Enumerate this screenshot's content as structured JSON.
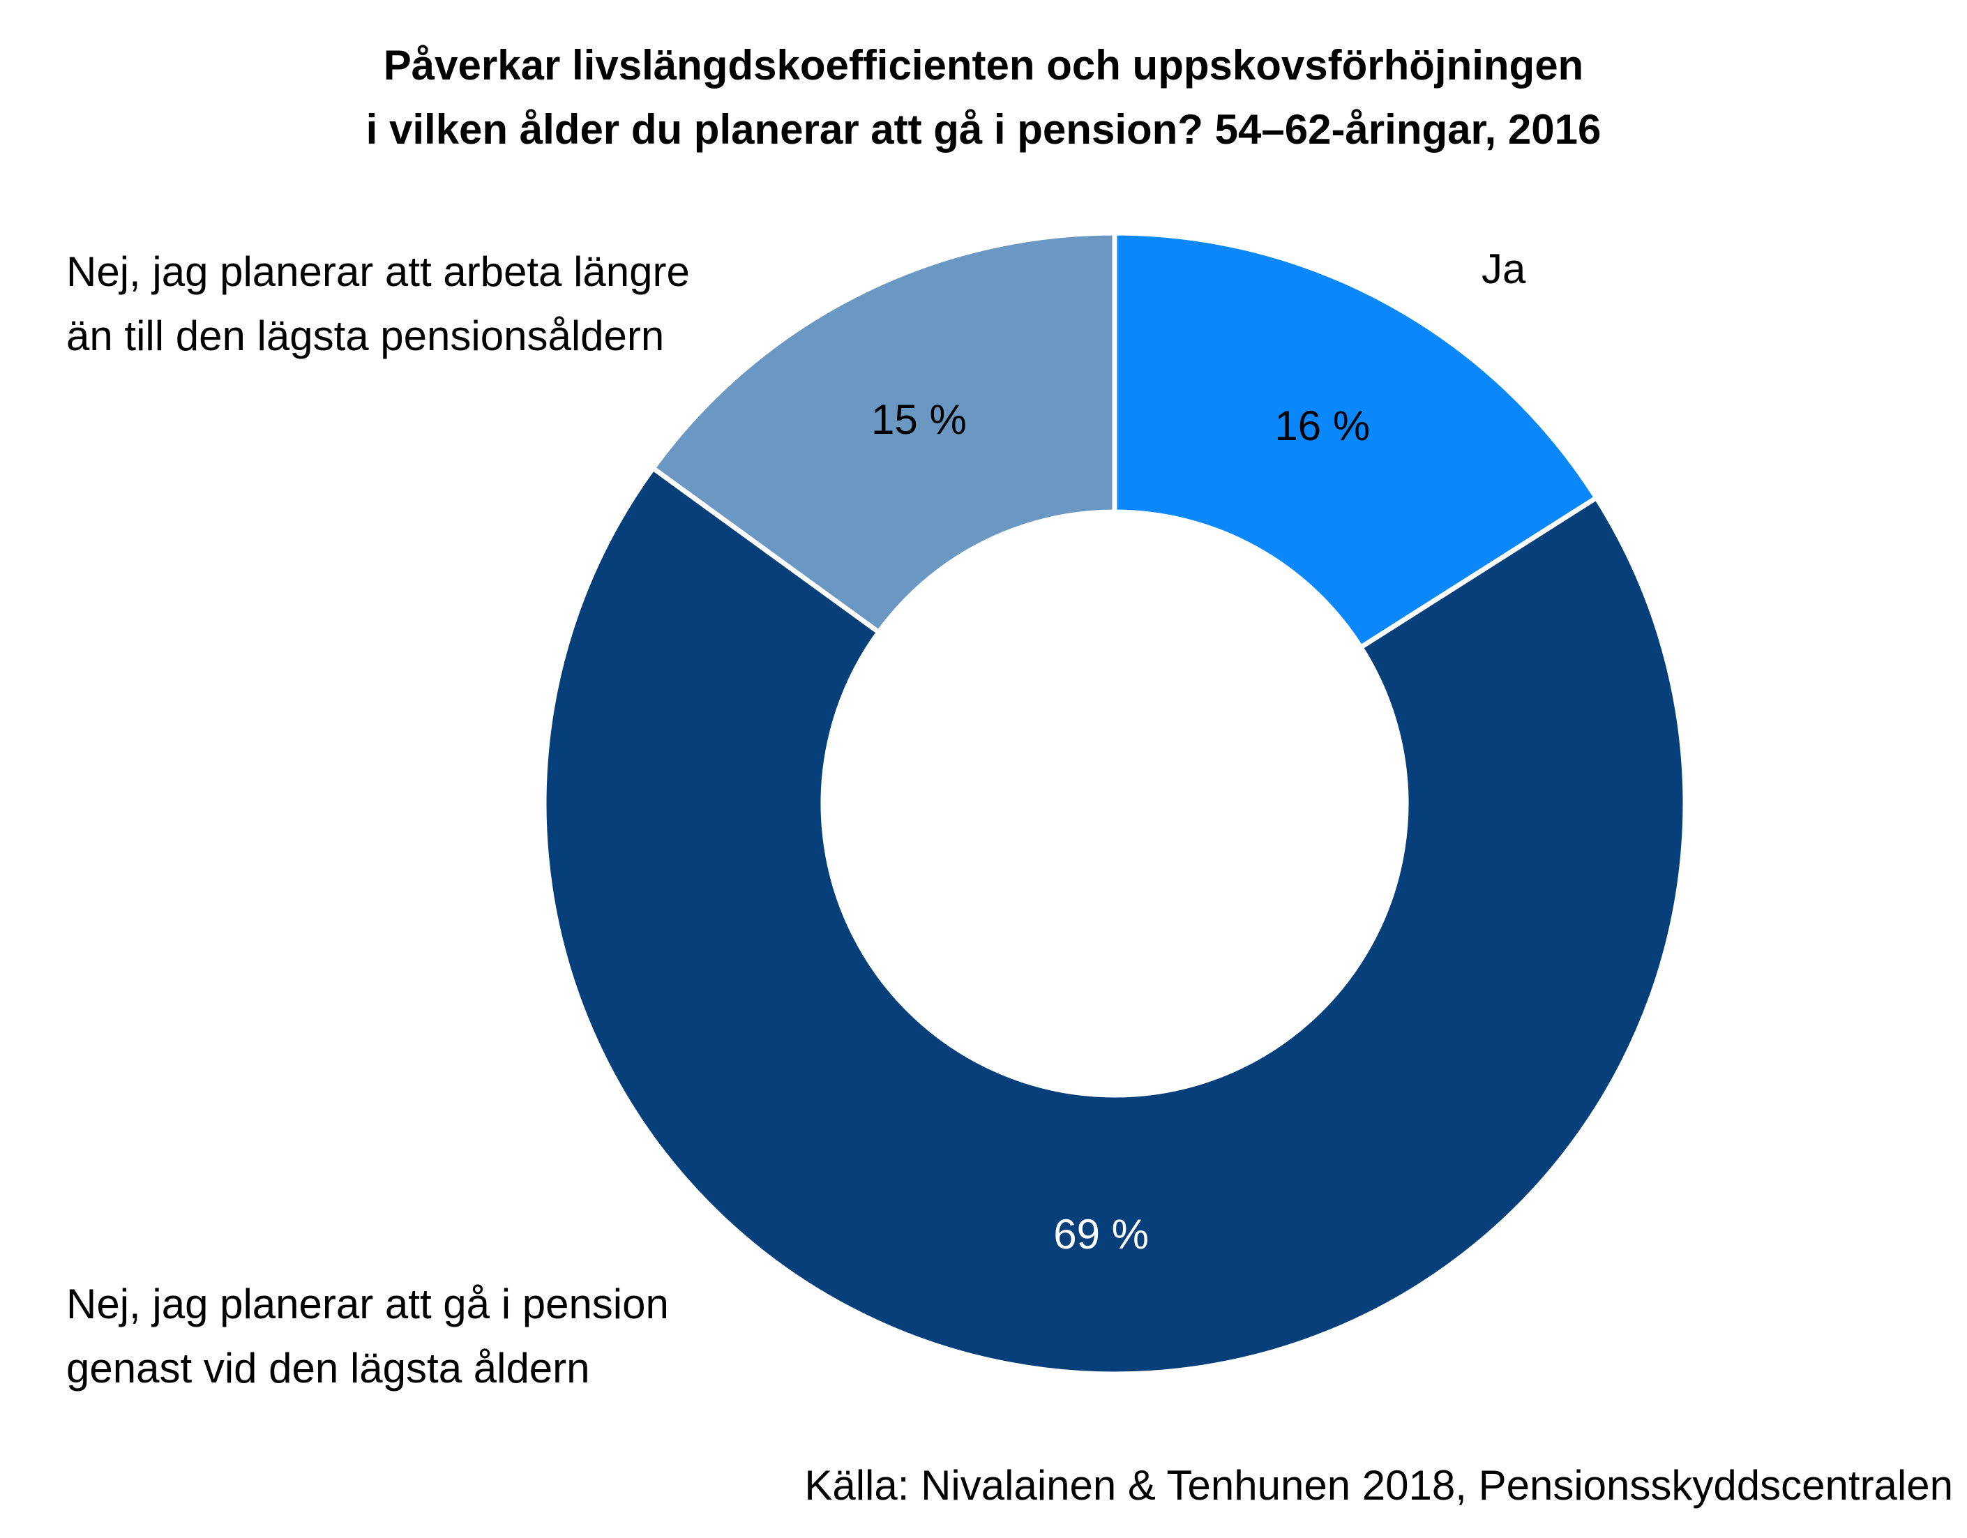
{
  "chart_data": {
    "type": "pie",
    "variant": "donut",
    "title_lines": [
      "Påverkar livslängdskoefficienten och uppskovsförhöjningen",
      "i vilken ålder du planerar att gå i pension? 54–62-åringar, 2016"
    ],
    "slices": [
      {
        "label_lines": [
          "Ja"
        ],
        "value": 16,
        "value_label": "16 %",
        "color": "#0a88fb",
        "value_label_color": "#000000"
      },
      {
        "label_lines": [
          "Nej, jag planerar att gå i pension",
          "genast vid den lägsta åldern"
        ],
        "value": 69,
        "value_label": "69 %",
        "color": "#063f7a",
        "value_label_color": "#ffffff"
      },
      {
        "label_lines": [
          "Nej, jag planerar att arbeta längre",
          "än till den lägsta pensionsåldern"
        ],
        "value": 15,
        "value_label": "15 %",
        "color": "#6a98c3",
        "value_label_color": "#000000"
      }
    ],
    "start": "top",
    "direction": "clockwise",
    "source": "Källa: Nivalainen & Tenhunen 2018, Pensionsskyddscentralen"
  }
}
